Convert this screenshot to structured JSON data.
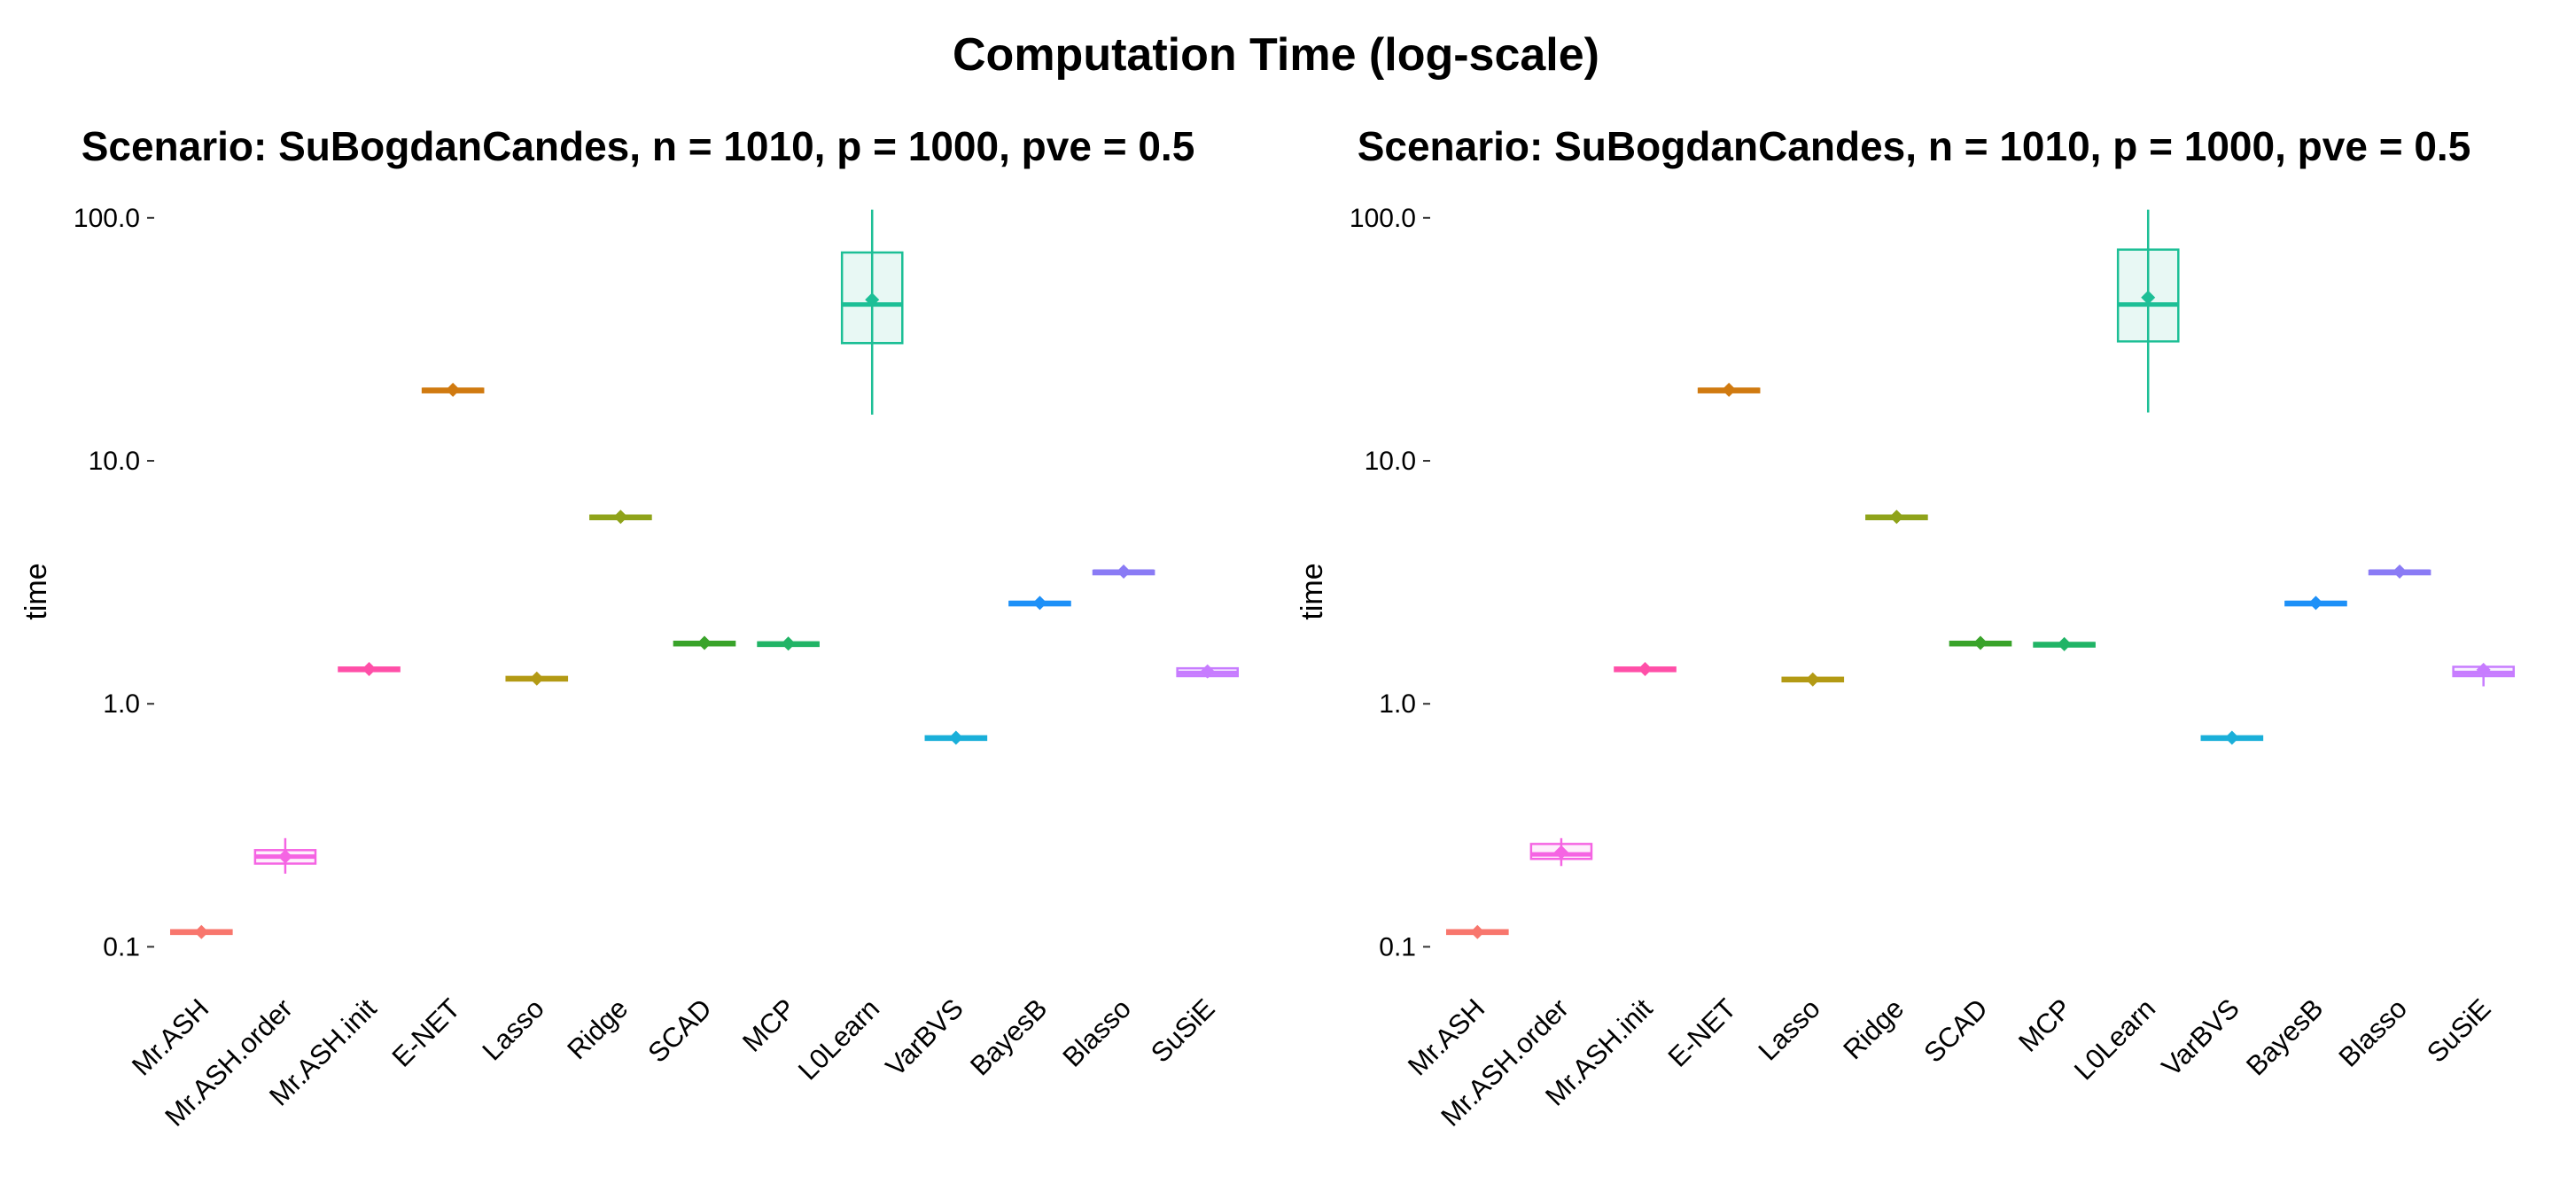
{
  "title": "Computation Time (log-scale)",
  "panels": [
    {
      "subtitle": "Scenario: SuBogdanCandes, n = 1010, p = 1000, pve = 0.5"
    },
    {
      "subtitle": "Scenario: SuBogdanCandes, n = 1010, p = 1000, pve = 0.5"
    }
  ],
  "chart_data": [
    {
      "type": "box",
      "title": "Scenario: SuBogdanCandes, n = 1010, p = 1000, pve = 0.5",
      "xlabel": "",
      "ylabel": "time",
      "yscale": "log",
      "ylim": [
        0.08,
        105
      ],
      "yticks": [
        0.1,
        1.0,
        10.0,
        100.0
      ],
      "ytick_labels": [
        "0.1",
        "1.0",
        "10.0",
        "100.0"
      ],
      "grid": false,
      "legend": "none",
      "categories": [
        "Mr.ASH",
        "Mr.ASH.order",
        "Mr.ASH.init",
        "E-NET",
        "Lasso",
        "Ridge",
        "SCAD",
        "MCP",
        "L0Learn",
        "VarBVS",
        "BayesB",
        "Blasso",
        "SuSiE"
      ],
      "colors": [
        "#F8766D",
        "#F564E3",
        "#FF4FA8",
        "#D07A10",
        "#B39A14",
        "#8FA31A",
        "#39A32A",
        "#21B466",
        "#1DBF96",
        "#1AAFD9",
        "#1E90F7",
        "#8A7BF5",
        "#C77CFF"
      ],
      "series": [
        {
          "name": "Mr.ASH",
          "min": 0.112,
          "q1": 0.113,
          "median": 0.115,
          "q3": 0.117,
          "max": 0.118,
          "mean": 0.115
        },
        {
          "name": "Mr.ASH.order",
          "min": 0.2,
          "q1": 0.22,
          "median": 0.235,
          "q3": 0.25,
          "max": 0.28,
          "mean": 0.235
        },
        {
          "name": "Mr.ASH.init",
          "min": 1.36,
          "q1": 1.37,
          "median": 1.39,
          "q3": 1.41,
          "max": 1.42,
          "mean": 1.39
        },
        {
          "name": "E-NET",
          "min": 19.3,
          "q1": 19.4,
          "median": 19.6,
          "q3": 19.8,
          "max": 19.9,
          "mean": 19.6
        },
        {
          "name": "Lasso",
          "min": 1.25,
          "q1": 1.26,
          "median": 1.27,
          "q3": 1.29,
          "max": 1.3,
          "mean": 1.27
        },
        {
          "name": "Ridge",
          "min": 5.8,
          "q1": 5.82,
          "median": 5.88,
          "q3": 5.95,
          "max": 5.98,
          "mean": 5.88
        },
        {
          "name": "SCAD",
          "min": 1.75,
          "q1": 1.76,
          "median": 1.78,
          "q3": 1.8,
          "max": 1.81,
          "mean": 1.78
        },
        {
          "name": "MCP",
          "min": 1.75,
          "q1": 1.76,
          "median": 1.77,
          "q3": 1.79,
          "max": 1.8,
          "mean": 1.77
        },
        {
          "name": "L0Learn",
          "min": 15.5,
          "q1": 30.5,
          "median": 44,
          "q3": 72,
          "max": 108,
          "mean": 46
        },
        {
          "name": "VarBVS",
          "min": 0.71,
          "q1": 0.715,
          "median": 0.725,
          "q3": 0.735,
          "max": 0.74,
          "mean": 0.725
        },
        {
          "name": "BayesB",
          "min": 2.55,
          "q1": 2.57,
          "median": 2.6,
          "q3": 2.63,
          "max": 2.65,
          "mean": 2.6
        },
        {
          "name": "Blasso",
          "min": 3.45,
          "q1": 3.47,
          "median": 3.5,
          "q3": 3.53,
          "max": 3.56,
          "mean": 3.5
        },
        {
          "name": "SuSiE",
          "min": 1.28,
          "q1": 1.3,
          "median": 1.34,
          "q3": 1.4,
          "max": 1.42,
          "mean": 1.36
        }
      ]
    },
    {
      "type": "box",
      "title": "Scenario: SuBogdanCandes, n = 1010, p = 1000, pve = 0.5",
      "xlabel": "",
      "ylabel": "time",
      "yscale": "log",
      "ylim": [
        0.08,
        105
      ],
      "yticks": [
        0.1,
        1.0,
        10.0,
        100.0
      ],
      "ytick_labels": [
        "0.1",
        "1.0",
        "10.0",
        "100.0"
      ],
      "grid": false,
      "legend": "none",
      "categories": [
        "Mr.ASH",
        "Mr.ASH.order",
        "Mr.ASH.init",
        "E-NET",
        "Lasso",
        "Ridge",
        "SCAD",
        "MCP",
        "L0Learn",
        "VarBVS",
        "BayesB",
        "Blasso",
        "SuSiE"
      ],
      "colors": [
        "#F8766D",
        "#F564E3",
        "#FF4FA8",
        "#D07A10",
        "#B39A14",
        "#8FA31A",
        "#39A32A",
        "#21B466",
        "#1DBF96",
        "#1AAFD9",
        "#1E90F7",
        "#8A7BF5",
        "#C77CFF"
      ],
      "series": [
        {
          "name": "Mr.ASH",
          "min": 0.112,
          "q1": 0.113,
          "median": 0.115,
          "q3": 0.117,
          "max": 0.118,
          "mean": 0.115
        },
        {
          "name": "Mr.ASH.order",
          "min": 0.215,
          "q1": 0.23,
          "median": 0.24,
          "q3": 0.265,
          "max": 0.28,
          "mean": 0.245
        },
        {
          "name": "Mr.ASH.init",
          "min": 1.36,
          "q1": 1.37,
          "median": 1.39,
          "q3": 1.41,
          "max": 1.42,
          "mean": 1.39
        },
        {
          "name": "E-NET",
          "min": 19.3,
          "q1": 19.4,
          "median": 19.6,
          "q3": 19.8,
          "max": 19.9,
          "mean": 19.6
        },
        {
          "name": "Lasso",
          "min": 1.24,
          "q1": 1.25,
          "median": 1.26,
          "q3": 1.28,
          "max": 1.29,
          "mean": 1.26
        },
        {
          "name": "Ridge",
          "min": 5.8,
          "q1": 5.82,
          "median": 5.88,
          "q3": 5.95,
          "max": 5.98,
          "mean": 5.88
        },
        {
          "name": "SCAD",
          "min": 1.75,
          "q1": 1.76,
          "median": 1.78,
          "q3": 1.8,
          "max": 1.81,
          "mean": 1.78
        },
        {
          "name": "MCP",
          "min": 1.74,
          "q1": 1.75,
          "median": 1.76,
          "q3": 1.78,
          "max": 1.79,
          "mean": 1.76
        },
        {
          "name": "L0Learn",
          "min": 15.8,
          "q1": 31,
          "median": 44,
          "q3": 74,
          "max": 108,
          "mean": 47
        },
        {
          "name": "VarBVS",
          "min": 0.71,
          "q1": 0.715,
          "median": 0.725,
          "q3": 0.735,
          "max": 0.74,
          "mean": 0.725
        },
        {
          "name": "BayesB",
          "min": 2.55,
          "q1": 2.57,
          "median": 2.6,
          "q3": 2.63,
          "max": 2.65,
          "mean": 2.6
        },
        {
          "name": "Blasso",
          "min": 3.45,
          "q1": 3.47,
          "median": 3.5,
          "q3": 3.53,
          "max": 3.56,
          "mean": 3.5
        },
        {
          "name": "SuSiE",
          "min": 1.18,
          "q1": 1.3,
          "median": 1.34,
          "q3": 1.42,
          "max": 1.45,
          "mean": 1.38
        }
      ]
    }
  ]
}
